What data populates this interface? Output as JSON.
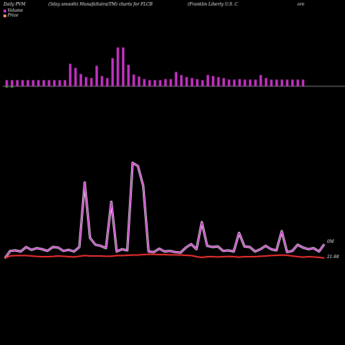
{
  "header": {
    "period": "Daily PVM",
    "smoothing": "(5day smooth) MunafaSutra(TM) charts for FLCB",
    "company": "(Franklin  Liberty U.S. C",
    "company_tail": "ore"
  },
  "legend": {
    "volume": "Volume",
    "price": "Price"
  },
  "labels": {
    "volume_last": "0M",
    "price_last": "21.68"
  },
  "colors": {
    "volume_bar_up": "#cc33cc",
    "volume_bar_down": "#33aa33",
    "volume_line": "#cc33cc",
    "price_line": "#ff3333",
    "baseline": "#888888"
  },
  "chart_data": {
    "type": "bar",
    "categories": [],
    "bar_values": [
      1.2,
      1.2,
      1.2,
      1.2,
      1.2,
      1.2,
      1.2,
      1.2,
      1.2,
      1.2,
      1.2,
      1.2,
      4.4,
      3.6,
      2.4,
      1.8,
      1.6,
      4.0,
      2.0,
      1.6,
      5.5,
      7.6,
      7.6,
      4.2,
      2.3,
      1.9,
      1.4,
      1.2,
      1.2,
      1.2,
      1.4,
      1.4,
      2.8,
      2.2,
      1.8,
      1.6,
      1.4,
      1.2,
      2.2,
      2.0,
      1.8,
      1.6,
      1.3,
      1.3,
      1.4,
      1.3,
      1.3,
      1.3,
      2.2,
      1.6,
      1.3,
      1.3,
      1.3,
      1.3,
      1.3,
      1.3,
      1.3
    ],
    "bar_down_markers": [
      1,
      1,
      0,
      0,
      0,
      0,
      0,
      0,
      0,
      0,
      0,
      0,
      0,
      0,
      0,
      0,
      0,
      0,
      0,
      0,
      0,
      0,
      0,
      0,
      0,
      0,
      0,
      0,
      0,
      0,
      0,
      0,
      0,
      0,
      0,
      0,
      0,
      0,
      0,
      0,
      0,
      0,
      0,
      0,
      0,
      0,
      0,
      0,
      0,
      0,
      0,
      0,
      0,
      0,
      0,
      0,
      0
    ],
    "volume_line": [
      0.2,
      1.5,
      1.6,
      1.4,
      2.2,
      1.7,
      2.0,
      1.8,
      1.5,
      2.2,
      2.1,
      1.5,
      1.7,
      1.4,
      2.2,
      13.6,
      3.8,
      2.6,
      2.4,
      2.0,
      10.2,
      1.4,
      1.8,
      1.6,
      17.1,
      16.5,
      13.0,
      1.4,
      1.3,
      1.9,
      1.4,
      1.5,
      1.3,
      1.2,
      2.1,
      2.7,
      1.8,
      6.6,
      2.4,
      2.2,
      2.3,
      1.5,
      1.6,
      1.4,
      4.7,
      2.3,
      2.2,
      1.4,
      1.8,
      2.4,
      1.8,
      1.6,
      5.0,
      1.3,
      1.5,
      2.6,
      2.1,
      1.8,
      2.0,
      1.4,
      2.7
    ],
    "price_line": [
      0.2,
      0.35,
      0.38,
      0.38,
      0.38,
      0.35,
      0.32,
      0.3,
      0.3,
      0.32,
      0.35,
      0.33,
      0.3,
      0.28,
      0.33,
      0.38,
      0.35,
      0.35,
      0.35,
      0.33,
      0.33,
      0.38,
      0.38,
      0.4,
      0.42,
      0.42,
      0.45,
      0.47,
      0.47,
      0.45,
      0.45,
      0.43,
      0.43,
      0.42,
      0.4,
      0.38,
      0.3,
      0.25,
      0.3,
      0.3,
      0.28,
      0.3,
      0.32,
      0.3,
      0.27,
      0.3,
      0.3,
      0.3,
      0.33,
      0.35,
      0.38,
      0.4,
      0.42,
      0.4,
      0.35,
      0.3,
      0.27,
      0.3,
      0.28,
      0.25,
      0.2
    ],
    "grid": false
  }
}
